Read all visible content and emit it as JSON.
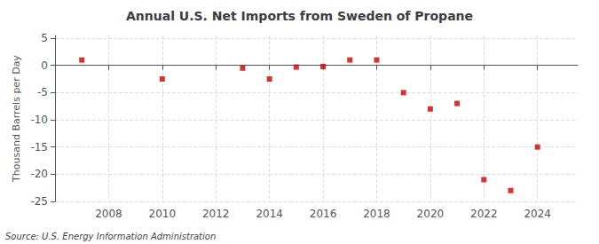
{
  "chart_data": {
    "type": "scatter",
    "title": "Annual U.S. Net Imports from Sweden of Propane",
    "ylabel": "Thousand Barrels per Day",
    "annotation": "Source: U.S. Energy Information Administration",
    "x": [
      2007,
      2010,
      2013,
      2014,
      2015,
      2016,
      2017,
      2018,
      2019,
      2020,
      2021,
      2022,
      2023,
      2024
    ],
    "values": [
      1,
      -2.5,
      -0.5,
      -2.5,
      -0.3,
      -0.2,
      1,
      1,
      -5,
      -8,
      -7,
      -21,
      -23,
      -15
    ],
    "color": "#cc0000",
    "marker": "square",
    "xlim": [
      2006.0,
      2025.5
    ],
    "ylim": [
      -25,
      5.5
    ],
    "xticks": [
      2008,
      2010,
      2012,
      2014,
      2016,
      2018,
      2020,
      2022,
      2024
    ],
    "yticks": [
      5,
      0,
      -5,
      -10,
      -15,
      -20,
      -25
    ],
    "grid": true
  }
}
